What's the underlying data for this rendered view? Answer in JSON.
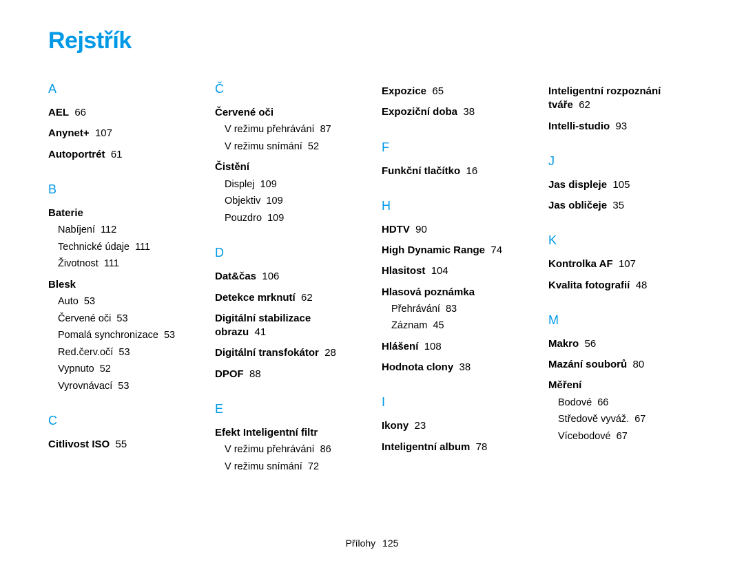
{
  "title": "Rejstřík",
  "title_color": "#0099e6",
  "letter_color": "#0099e6",
  "footer": {
    "label": "Přílohy",
    "page": "125"
  },
  "columns": [
    [
      {
        "letter": "A"
      },
      {
        "term": "AEL",
        "pg": "66"
      },
      {
        "term": "Anynet+",
        "pg": "107"
      },
      {
        "term": "Autoportrét",
        "pg": "61"
      },
      {
        "letter": "B"
      },
      {
        "term": "Baterie"
      },
      {
        "sub": "Nabíjení",
        "pg": "112"
      },
      {
        "sub": "Technické údaje",
        "pg": "111"
      },
      {
        "sub": "Životnost",
        "pg": "111"
      },
      {
        "term": "Blesk"
      },
      {
        "sub": "Auto",
        "pg": "53"
      },
      {
        "sub": "Červené oči",
        "pg": "53"
      },
      {
        "sub": "Pomalá synchronizace",
        "pg": "53"
      },
      {
        "sub": "Red.červ.očí",
        "pg": "53"
      },
      {
        "sub": "Vypnuto",
        "pg": "52"
      },
      {
        "sub": "Vyrovnávací",
        "pg": "53"
      },
      {
        "letter": "C"
      },
      {
        "term": "Citlivost ISO",
        "pg": "55"
      }
    ],
    [
      {
        "letter": "Č"
      },
      {
        "term": "Červené oči"
      },
      {
        "sub": "V režimu přehrávání",
        "pg": "87"
      },
      {
        "sub": "V režimu snímání",
        "pg": "52"
      },
      {
        "term": "Čistění"
      },
      {
        "sub": "Displej",
        "pg": "109"
      },
      {
        "sub": "Objektiv",
        "pg": "109"
      },
      {
        "sub": "Pouzdro",
        "pg": "109"
      },
      {
        "letter": "D"
      },
      {
        "term": "Dat&čas",
        "pg": "106"
      },
      {
        "term": "Detekce mrknutí",
        "pg": "62"
      },
      {
        "term": "Digitální stabilizace obrazu",
        "pg": "41"
      },
      {
        "term": "Digitální transfokátor",
        "pg": "28"
      },
      {
        "term": "DPOF",
        "pg": "88"
      },
      {
        "letter": "E"
      },
      {
        "term": "Efekt Inteligentní filtr"
      },
      {
        "sub": "V režimu přehrávání",
        "pg": "86"
      },
      {
        "sub": "V režimu snímání",
        "pg": "72"
      }
    ],
    [
      {
        "term": "Expozice",
        "pg": "65"
      },
      {
        "term": "Expoziční doba",
        "pg": "38"
      },
      {
        "letter": "F"
      },
      {
        "term": "Funkční tlačítko",
        "pg": "16"
      },
      {
        "letter": "H"
      },
      {
        "term": "HDTV",
        "pg": "90"
      },
      {
        "term": "High Dynamic Range",
        "pg": "74"
      },
      {
        "term": "Hlasitost",
        "pg": "104"
      },
      {
        "term": "Hlasová poznámka"
      },
      {
        "sub": "Přehrávání",
        "pg": "83"
      },
      {
        "sub": "Záznam",
        "pg": "45"
      },
      {
        "term": "Hlášení",
        "pg": "108"
      },
      {
        "term": "Hodnota clony",
        "pg": "38"
      },
      {
        "letter": "I"
      },
      {
        "term": "Ikony",
        "pg": "23"
      },
      {
        "term": "Inteligentní album",
        "pg": "78"
      }
    ],
    [
      {
        "term": "Inteligentní rozpoznání tváře",
        "pg": "62"
      },
      {
        "term": "Intelli-studio",
        "pg": "93"
      },
      {
        "letter": "J"
      },
      {
        "term": "Jas displeje",
        "pg": "105"
      },
      {
        "term": "Jas obličeje",
        "pg": "35"
      },
      {
        "letter": "K"
      },
      {
        "term": "Kontrolka AF",
        "pg": "107"
      },
      {
        "term": "Kvalita fotografií",
        "pg": "48"
      },
      {
        "letter": "M"
      },
      {
        "term": "Makro",
        "pg": "56"
      },
      {
        "term": "Mazání souborů",
        "pg": "80"
      },
      {
        "term": "Měření"
      },
      {
        "sub": "Bodové",
        "pg": "66"
      },
      {
        "sub": "Středově vyváž.",
        "pg": "67"
      },
      {
        "sub": "Vícebodové",
        "pg": "67"
      }
    ]
  ]
}
